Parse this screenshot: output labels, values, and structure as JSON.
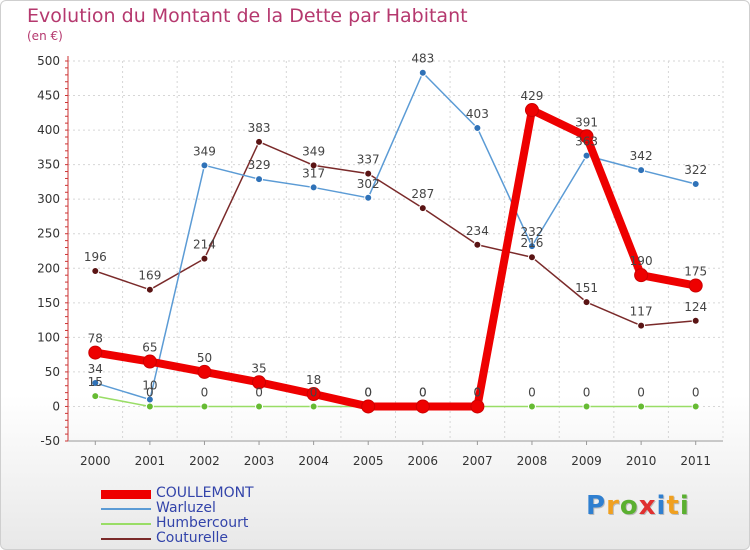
{
  "header": {
    "title": "Evolution du Montant de la Dette par Habitant",
    "subtitle": "(en €)"
  },
  "logo": {
    "text": "Proxiti",
    "letters": [
      "P",
      "r",
      "o",
      "x",
      "i",
      "t",
      "i"
    ],
    "colors": [
      "#2f7fd0",
      "#f0a020",
      "#5ab030",
      "#e03030",
      "#2f7fd0",
      "#f0a020",
      "#5ab030"
    ]
  },
  "chart_data": {
    "type": "line",
    "title": "Evolution du Montant de la Dette par Habitant",
    "subtitle": "(en €)",
    "xlabel": "",
    "ylabel": "",
    "ylim": [
      -50,
      500
    ],
    "yticks": [
      -50,
      0,
      50,
      100,
      150,
      200,
      250,
      300,
      350,
      400,
      450,
      500
    ],
    "grid": true,
    "legend_position": "bottom-left",
    "x": [
      "2000",
      "2001",
      "2002",
      "2003",
      "2004",
      "2005",
      "2006",
      "2007",
      "2008",
      "2009",
      "2010",
      "2011"
    ],
    "series": [
      {
        "name": "COULLEMONT",
        "color": "#ee0000",
        "markerColor": "#ee0000",
        "bold": true,
        "values": [
          78,
          65,
          50,
          35,
          18,
          0,
          0,
          0,
          429,
          391,
          190,
          175
        ],
        "labels": [
          "78",
          "65",
          "50",
          "35",
          "18",
          "0",
          "0",
          "0",
          "429",
          "391",
          "190",
          "175"
        ]
      },
      {
        "name": "Warluzel",
        "color": "#5b9bd5",
        "markerColor": "#2f72b8",
        "bold": false,
        "values": [
          34,
          10,
          349,
          329,
          317,
          302,
          483,
          403,
          232,
          363,
          342,
          322
        ],
        "labels": [
          "34",
          "10",
          "349",
          "329",
          "317",
          "302",
          "483",
          "403",
          "232",
          "363",
          "342",
          "322"
        ]
      },
      {
        "name": "Humbercourt",
        "color": "#99dd66",
        "markerColor": "#66bb33",
        "bold": false,
        "values": [
          15,
          0,
          0,
          0,
          0,
          0,
          0,
          0,
          0,
          0,
          0,
          0
        ],
        "labels": [
          "15",
          "0",
          "0",
          "0",
          "0",
          "0",
          "0",
          "0",
          "0",
          "0",
          "0",
          "0"
        ]
      },
      {
        "name": "Couturelle",
        "color": "#7a2a2a",
        "markerColor": "#5a1414",
        "bold": false,
        "values": [
          196,
          169,
          214,
          383,
          349,
          337,
          287,
          234,
          216,
          151,
          117,
          124
        ],
        "labels": [
          "196",
          "169",
          "214",
          "383",
          "349",
          "337",
          "287",
          "234",
          "216",
          "151",
          "117",
          "124"
        ]
      }
    ]
  }
}
